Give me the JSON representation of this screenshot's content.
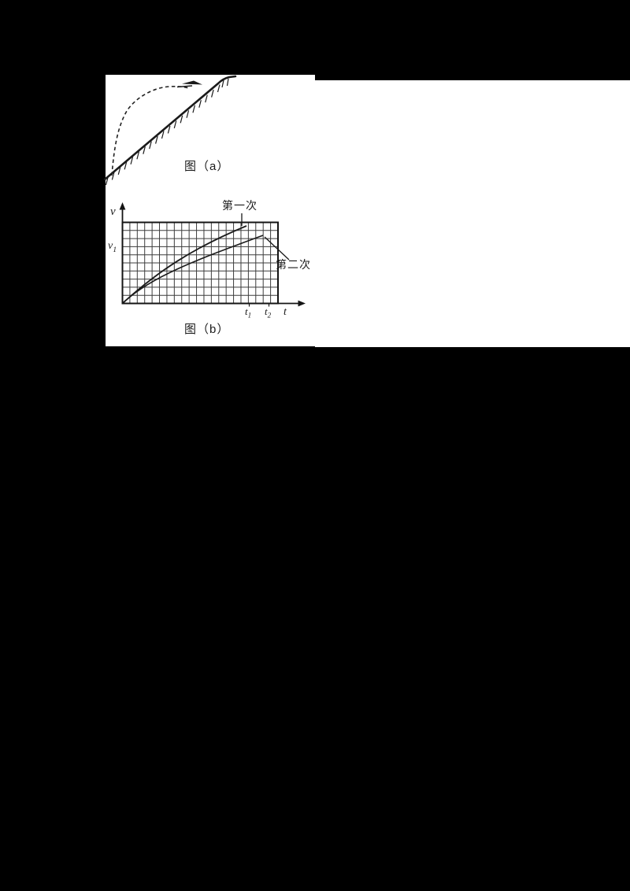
{
  "page": {
    "background_color": "#000000",
    "panel_color": "#ffffff",
    "ink_color": "#1a1a1a"
  },
  "figure_a": {
    "caption": "图（a）"
  },
  "figure_b": {
    "caption": "图（b）",
    "y_axis_label": "v",
    "y_tick_label": {
      "base": "v",
      "sub": "1"
    },
    "x_tick_labels": [
      {
        "base": "t",
        "sub": "1"
      },
      {
        "base": "t",
        "sub": "2"
      }
    ],
    "x_axis_label": "t",
    "curve_labels": {
      "first": "第一次",
      "second": "第二次"
    }
  },
  "chart_data": {
    "type": "line",
    "title": "",
    "xlabel": "t",
    "ylabel": "v",
    "x_tick_labels": [
      "t₁",
      "t₂"
    ],
    "y_tick_labels": [
      "v₁"
    ],
    "grid": true,
    "grid_cols": 21,
    "grid_rows": 10,
    "v1_level_norm": 0.7,
    "t1_norm": 0.815,
    "t2_norm": 0.937,
    "series": [
      {
        "name": "第一次",
        "points_norm": [
          [
            0,
            0
          ],
          [
            0.08,
            0.14
          ],
          [
            0.16,
            0.3
          ],
          [
            0.37,
            0.54
          ],
          [
            0.57,
            0.76
          ],
          [
            0.67,
            0.86
          ],
          [
            0.8,
            0.96
          ]
        ]
      },
      {
        "name": "第二次",
        "points_norm": [
          [
            0,
            0
          ],
          [
            0.08,
            0.14
          ],
          [
            0.16,
            0.3
          ],
          [
            0.47,
            0.51
          ],
          [
            0.62,
            0.62
          ],
          [
            0.77,
            0.73
          ],
          [
            0.91,
            0.84
          ]
        ]
      }
    ]
  }
}
